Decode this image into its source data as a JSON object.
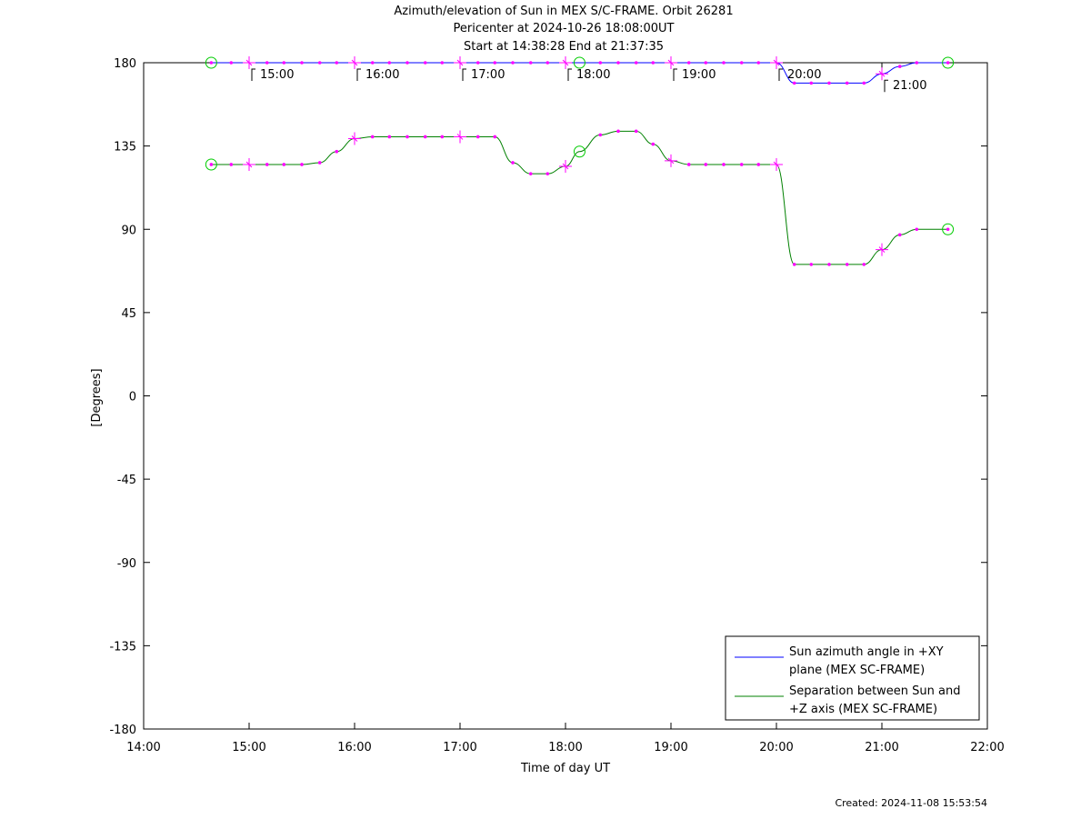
{
  "titles": [
    "Azimuth/elevation of Sun in MEX S/C-FRAME.  Orbit 26281",
    "Pericenter at 2024-10-26 18:08:00UT",
    "Start at 14:38:28 End at 21:37:35"
  ],
  "created": "Created: 2024-11-08 15:53:54",
  "colors": {
    "azimuth": "#0000ff",
    "separation": "#008000",
    "marker": "#ff00ff",
    "circle": "#00cc00"
  },
  "chart_data": {
    "type": "line",
    "xlabel": "Time of day UT",
    "ylabel": "[Degrees]",
    "xlim": [
      14.0,
      22.0
    ],
    "ylim": [
      -180,
      180
    ],
    "xticks": [
      "14:00",
      "15:00",
      "16:00",
      "17:00",
      "18:00",
      "19:00",
      "20:00",
      "21:00",
      "22:00"
    ],
    "yticks": [
      "180",
      "135",
      "90",
      "45",
      "0",
      "-45",
      "-90",
      "-135",
      "-180"
    ],
    "grid": false,
    "legend_position": "bottom-right",
    "series": [
      {
        "name": "Sun azimuth angle in +XY plane (MEX SC-FRAME)",
        "legend_lines": [
          "Sun azimuth angle in +XY",
          "plane (MEX SC-FRAME)"
        ],
        "x": [
          14.641,
          14.83,
          15.0,
          15.17,
          15.33,
          15.5,
          15.67,
          15.83,
          16.0,
          16.17,
          16.33,
          16.5,
          16.67,
          16.83,
          17.0,
          17.17,
          17.33,
          17.5,
          17.67,
          17.83,
          18.0,
          18.133,
          18.33,
          18.5,
          18.67,
          18.83,
          19.0,
          19.17,
          19.33,
          19.5,
          19.67,
          19.83,
          20.0,
          20.17,
          20.33,
          20.5,
          20.67,
          20.83,
          21.0,
          21.17,
          21.33,
          21.626
        ],
        "y": [
          180,
          180,
          180,
          180,
          180,
          180,
          180,
          180,
          180,
          180,
          180,
          180,
          180,
          180,
          180,
          180,
          180,
          180,
          180,
          180,
          180,
          180,
          180,
          180,
          180,
          180,
          180,
          180,
          180,
          180,
          180,
          180,
          180,
          169,
          169,
          169,
          169,
          169,
          174,
          178,
          180,
          180
        ]
      },
      {
        "name": "Separation between Sun and +Z axis (MEX SC-FRAME)",
        "legend_lines": [
          "Separation between Sun and",
          "+Z axis (MEX SC-FRAME)"
        ],
        "x": [
          14.641,
          14.83,
          15.0,
          15.17,
          15.33,
          15.5,
          15.67,
          15.83,
          16.0,
          16.17,
          16.33,
          16.5,
          16.67,
          16.83,
          17.0,
          17.17,
          17.33,
          17.5,
          17.67,
          17.83,
          18.0,
          18.133,
          18.33,
          18.5,
          18.67,
          18.83,
          19.0,
          19.17,
          19.33,
          19.5,
          19.67,
          19.83,
          20.0,
          20.17,
          20.33,
          20.5,
          20.67,
          20.83,
          21.0,
          21.17,
          21.33,
          21.626
        ],
        "y": [
          125,
          125,
          125,
          125,
          125,
          125,
          126,
          132,
          139,
          140,
          140,
          140,
          140,
          140,
          140,
          140,
          140,
          126,
          120,
          120,
          124,
          132,
          141,
          143,
          143,
          136,
          127,
          125,
          125,
          125,
          125,
          125,
          125,
          71,
          71,
          71,
          71,
          71,
          79,
          87,
          90,
          90
        ]
      }
    ],
    "annotations": [
      {
        "x": 15.0,
        "label": "15:00"
      },
      {
        "x": 16.0,
        "label": "16:00"
      },
      {
        "x": 17.0,
        "label": "17:00"
      },
      {
        "x": 18.0,
        "label": "18:00"
      },
      {
        "x": 19.0,
        "label": "19:00"
      },
      {
        "x": 20.0,
        "label": "20:00"
      },
      {
        "x": 21.0,
        "label": "21:00"
      }
    ]
  }
}
